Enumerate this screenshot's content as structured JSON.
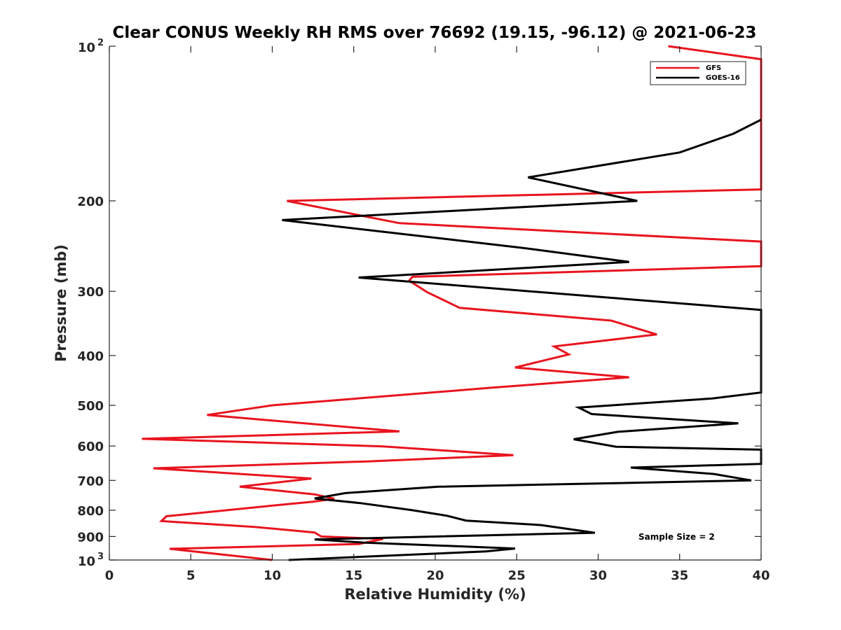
{
  "chart_data": {
    "type": "line",
    "title": "Clear CONUS Weekly RH RMS over 76692 (19.15, -96.12) @ 2021-06-23",
    "xlabel": "Relative Humidity (%)",
    "ylabel": "Pressure (mb)",
    "xlim": [
      0,
      40
    ],
    "ylim": [
      100,
      1000
    ],
    "yscale": "log",
    "y_reversed": true,
    "x_ticks": [
      "0",
      "5",
      "10",
      "15",
      "20",
      "25",
      "30",
      "35",
      "40"
    ],
    "y_ticks": [
      {
        "value": 100,
        "base": "10",
        "exp": "2"
      },
      {
        "value": 200,
        "label": "200"
      },
      {
        "value": 300,
        "label": "300"
      },
      {
        "value": 400,
        "label": "400"
      },
      {
        "value": 500,
        "label": "500"
      },
      {
        "value": 600,
        "label": "600"
      },
      {
        "value": 700,
        "label": "700"
      },
      {
        "value": 800,
        "label": "800"
      },
      {
        "value": 900,
        "label": "900"
      },
      {
        "value": 1000,
        "base": "10",
        "exp": "3"
      }
    ],
    "legend_position": "top-right",
    "annotation": "Sample Size = 2",
    "series": [
      {
        "name": "GFS",
        "color": "#e8141e",
        "points": [
          [
            34.3,
            100
          ],
          [
            40,
            106
          ],
          [
            40,
            190
          ],
          [
            10.9,
            200
          ],
          [
            17.8,
            221
          ],
          [
            40,
            240
          ],
          [
            40,
            268
          ],
          [
            18.6,
            281
          ],
          [
            18.4,
            286
          ],
          [
            19.5,
            301
          ],
          [
            21.5,
            323
          ],
          [
            30.8,
            342
          ],
          [
            33.6,
            364
          ],
          [
            27.3,
            384
          ],
          [
            28.2,
            398
          ],
          [
            24.9,
            422
          ],
          [
            31.9,
            441
          ],
          [
            23.5,
            462
          ],
          [
            10,
            500
          ],
          [
            6,
            522
          ],
          [
            17.8,
            562
          ],
          [
            2,
            581
          ],
          [
            16.8,
            601
          ],
          [
            24.8,
            625
          ],
          [
            15.8,
            643
          ],
          [
            2.7,
            663
          ],
          [
            12.4,
            694
          ],
          [
            8,
            720
          ],
          [
            12.6,
            745
          ],
          [
            13.8,
            760
          ],
          [
            12.5,
            770
          ],
          [
            9.8,
            785
          ],
          [
            3.5,
            822
          ],
          [
            3.2,
            840
          ],
          [
            8.9,
            862
          ],
          [
            12.6,
            884
          ],
          [
            13,
            900
          ],
          [
            16.8,
            910
          ],
          [
            15.3,
            931
          ],
          [
            3.7,
            951
          ],
          [
            10,
            1000
          ]
        ]
      },
      {
        "name": "GOES-16",
        "color": "#000000",
        "points": [
          [
            40,
            139
          ],
          [
            38.3,
            148
          ],
          [
            35,
            161
          ],
          [
            25.7,
            180
          ],
          [
            32.4,
            200
          ],
          [
            10.6,
            218
          ],
          [
            25.4,
            247
          ],
          [
            31.9,
            263
          ],
          [
            15.3,
            282
          ],
          [
            40,
            326
          ],
          [
            40,
            472
          ],
          [
            37,
            485
          ],
          [
            28.8,
            505
          ],
          [
            29.6,
            520
          ],
          [
            38.6,
            542
          ],
          [
            31.2,
            563
          ],
          [
            28.5,
            582
          ],
          [
            31.1,
            602
          ],
          [
            40,
            610
          ],
          [
            40,
            650
          ],
          [
            32,
            661
          ],
          [
            37.1,
            680
          ],
          [
            39.4,
            700
          ],
          [
            20.2,
            720
          ],
          [
            14.5,
            741
          ],
          [
            12.6,
            759
          ],
          [
            15.4,
            775
          ],
          [
            18.6,
            800
          ],
          [
            20.7,
            820
          ],
          [
            21.9,
            838
          ],
          [
            26.5,
            855
          ],
          [
            29.8,
            885
          ],
          [
            12.6,
            912
          ],
          [
            15.6,
            925
          ],
          [
            24.9,
            950
          ],
          [
            23.1,
            962
          ],
          [
            11,
            1000
          ]
        ]
      }
    ]
  }
}
